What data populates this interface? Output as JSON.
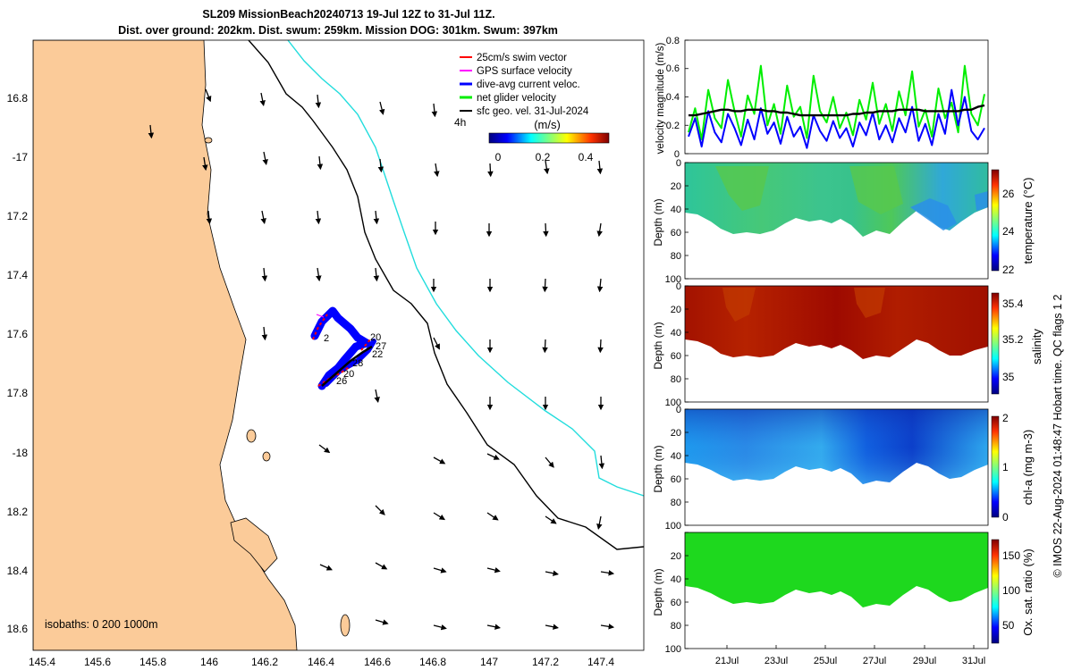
{
  "title": {
    "line1": "SL209 MissionBeach20240713 19-Jul 12Z to 31-Jul 11Z.",
    "line2": "Dist. over ground: 202km. Dist. swum: 259km. Mission DOG: 301km. Swum: 397km"
  },
  "colors": {
    "land": "#fbcb99",
    "coast": "#000000",
    "isobath_200": "#000000",
    "isobath_1000": "#22dddd",
    "swim": "#ff0000",
    "gps": "#ff00ff",
    "dive_avg": "#0000ff",
    "net_glider": "#00ee00",
    "sfc_geo": "#000000"
  },
  "map": {
    "lon_ticks": [
      "145.4",
      "145.6",
      "145.8",
      "146",
      "146.2",
      "146.4",
      "146.6",
      "146.8",
      "147",
      "147.2",
      "147.4"
    ],
    "lat_ticks": [
      "16.8",
      "-17",
      "17.2",
      "17.4",
      "17.6",
      "17.8",
      "-18",
      "18.2",
      "18.4",
      "18.6"
    ],
    "legend": [
      "25cm/s swim vector",
      "GPS surface velocity",
      "dive-avg current veloc.",
      "net glider velocity",
      "sfc geo. vel. 31-Jul-2024"
    ],
    "scale_label": "4h",
    "colorbar_title": "(m/s)",
    "colorbar_ticks": [
      "0",
      "0.2",
      "0.4"
    ],
    "isobaths_note": "isobaths: 0   200  1000m",
    "track_day_labels": [
      "20",
      "27",
      "22",
      "28",
      "20",
      "26",
      "2"
    ]
  },
  "chart_data": [
    {
      "type": "line",
      "title": "",
      "ylabel": "velocity magnitude (m/s)",
      "ylim": [
        0,
        0.8
      ],
      "yticks": [
        "0",
        "0.2",
        "0.4",
        "0.6",
        "0.8"
      ],
      "series": [
        {
          "name": "net glider velocity",
          "color": "#00ee00",
          "values": [
            0.15,
            0.32,
            0.1,
            0.45,
            0.25,
            0.18,
            0.52,
            0.3,
            0.12,
            0.41,
            0.28,
            0.62,
            0.2,
            0.35,
            0.14,
            0.48,
            0.26,
            0.33,
            0.11,
            0.55,
            0.3,
            0.22,
            0.4,
            0.18,
            0.29,
            0.13,
            0.38,
            0.24,
            0.5,
            0.21,
            0.35,
            0.16,
            0.44,
            0.27,
            0.58,
            0.19,
            0.31,
            0.12,
            0.46,
            0.25,
            0.36,
            0.15,
            0.62,
            0.28,
            0.2,
            0.42
          ]
        },
        {
          "name": "dive-avg current veloc.",
          "color": "#0000ff",
          "values": [
            0.12,
            0.25,
            0.05,
            0.3,
            0.15,
            0.08,
            0.28,
            0.18,
            0.06,
            0.24,
            0.1,
            0.32,
            0.14,
            0.22,
            0.07,
            0.26,
            0.12,
            0.19,
            0.04,
            0.27,
            0.16,
            0.09,
            0.23,
            0.11,
            0.18,
            0.05,
            0.22,
            0.13,
            0.29,
            0.1,
            0.2,
            0.08,
            0.25,
            0.15,
            0.33,
            0.09,
            0.21,
            0.06,
            0.28,
            0.14,
            0.45,
            0.2,
            0.4,
            0.16,
            0.1,
            0.18
          ]
        },
        {
          "name": "sfc geo. vel.",
          "color": "#000000",
          "values": [
            0.27,
            0.27,
            0.28,
            0.29,
            0.3,
            0.31,
            0.31,
            0.3,
            0.3,
            0.31,
            0.31,
            0.31,
            0.3,
            0.3,
            0.29,
            0.29,
            0.28,
            0.27,
            0.27,
            0.27,
            0.27,
            0.27,
            0.27,
            0.27,
            0.27,
            0.28,
            0.28,
            0.29,
            0.29,
            0.3,
            0.3,
            0.3,
            0.31,
            0.31,
            0.31,
            0.31,
            0.3,
            0.3,
            0.3,
            0.3,
            0.3,
            0.3,
            0.31,
            0.31,
            0.33,
            0.34
          ]
        }
      ]
    },
    {
      "type": "heatmap",
      "variable": "temperature (°C)",
      "ylabel": "Depth (m)",
      "yticks": [
        "0",
        "20",
        "40",
        "60",
        "80",
        "100"
      ],
      "colorbar_ticks": [
        "22",
        "24",
        "26"
      ],
      "clim": [
        22,
        27
      ]
    },
    {
      "type": "heatmap",
      "variable": "salinity",
      "ylabel": "Depth (m)",
      "yticks": [
        "0",
        "20",
        "40",
        "60",
        "80",
        "100"
      ],
      "colorbar_ticks": [
        "35",
        "35.2",
        "35.4"
      ],
      "clim": [
        34.9,
        35.45
      ]
    },
    {
      "type": "heatmap",
      "variable": "chl-a (mg m-3)",
      "ylabel": "Depth (m)",
      "yticks": [
        "0",
        "20",
        "40",
        "60",
        "80",
        "100"
      ],
      "colorbar_ticks": [
        "0",
        "1",
        "2"
      ],
      "clim": [
        0,
        2
      ]
    },
    {
      "type": "heatmap",
      "variable": "Ox. sat. ratio (%)",
      "ylabel": "Depth (m)",
      "yticks": [
        "20",
        "40",
        "60",
        "80",
        "100"
      ],
      "colorbar_ticks": [
        "50",
        "100",
        "150"
      ],
      "clim": [
        25,
        175
      ]
    }
  ],
  "shared_xaxis": {
    "ticks": [
      "21Jul",
      "23Jul",
      "25Jul",
      "27Jul",
      "29Jul",
      "31Jul"
    ]
  },
  "footer": "© IMOS 22-Aug-2024 01:48:47 Hobart time. QC flags 1  2"
}
